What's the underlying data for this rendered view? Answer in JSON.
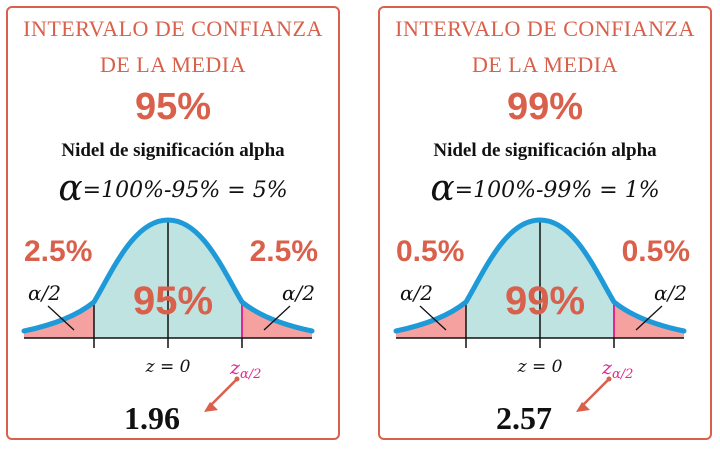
{
  "colors": {
    "accent": "#d9604b",
    "curve": "#1e9ad8",
    "center_fill": "#bfe3e1",
    "tail_fill": "#f4a1a0",
    "critical_line": "#e0288f",
    "text": "#111111"
  },
  "panels": [
    {
      "title_line1": "INTERVALO DE CONFIANZA",
      "title_line2": "DE LA MEDIA",
      "confidence": "95%",
      "significance_label": "Nidel de significación alpha",
      "alpha_symbol": "α",
      "formula": "=100%-95% = 5%",
      "left_tail_pct": "2.5%",
      "right_tail_pct": "2.5%",
      "left_tail_label": "α/2",
      "right_tail_label": "α/2",
      "center_label": "95%",
      "z_zero_label": "z = 0",
      "z_crit_main": "z",
      "z_crit_sub": "α/2",
      "critical_value": "1.96"
    },
    {
      "title_line1": "INTERVALO DE CONFIANZA",
      "title_line2": "DE LA MEDIA",
      "confidence": "99%",
      "significance_label": "Nidel de significación alpha",
      "alpha_symbol": "α",
      "formula": "=100%-99% = 1%",
      "left_tail_pct": "0.5%",
      "right_tail_pct": "0.5%",
      "left_tail_label": "α/2",
      "right_tail_label": "α/2",
      "center_label": "99%",
      "z_zero_label": "z = 0",
      "z_crit_main": "z",
      "z_crit_sub": "α/2",
      "critical_value": "2.57"
    }
  ]
}
